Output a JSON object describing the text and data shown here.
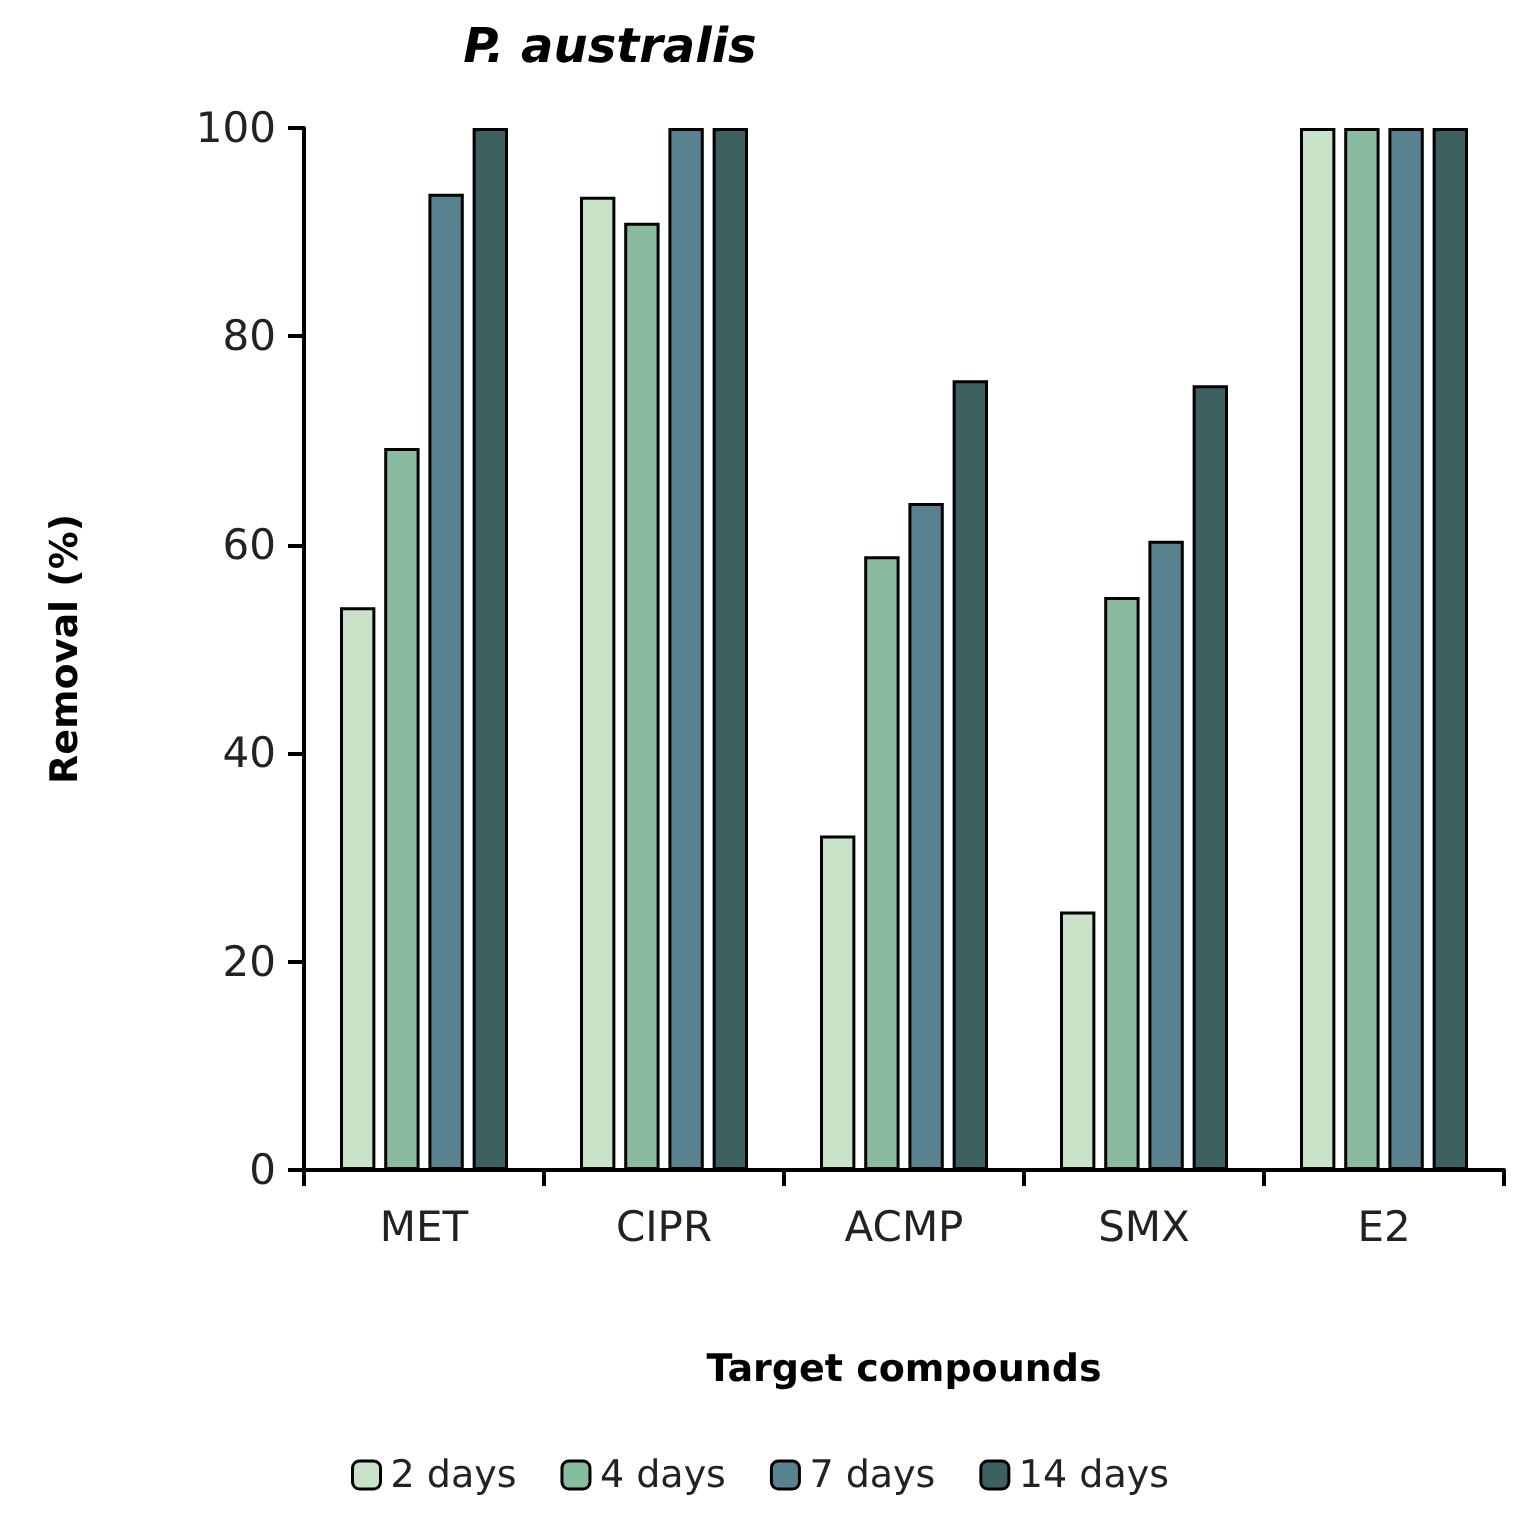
{
  "chart_data": {
    "type": "bar",
    "title": "P. australis",
    "xlabel": "Target compounds",
    "ylabel": "Removal (%)",
    "categories": [
      "MET",
      "CIPR",
      "ACMP",
      "SMX",
      "E2"
    ],
    "series": [
      {
        "name": "2 days",
        "color": "#c9e3c8",
        "values": [
          54.0,
          93.4,
          32.1,
          24.8,
          100
        ]
      },
      {
        "name": "4 days",
        "color": "#88bba0",
        "values": [
          69.3,
          90.9,
          58.9,
          55.0,
          100
        ]
      },
      {
        "name": "7 days",
        "color": "#588290",
        "values": [
          93.7,
          100,
          64.0,
          60.4,
          100
        ]
      },
      {
        "name": "14 days",
        "color": "#3d6060",
        "values": [
          100,
          100,
          75.8,
          75.3,
          100
        ]
      }
    ],
    "ylim": [
      0,
      100
    ],
    "yticks": [
      0,
      20,
      40,
      60,
      80,
      100
    ],
    "grid": false,
    "legend": "bottom"
  }
}
